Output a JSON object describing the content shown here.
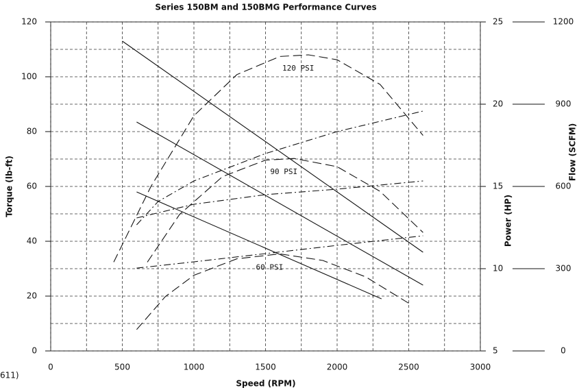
{
  "chart_data": {
    "type": "line",
    "title": "Series 150BM and 150BMG Performance Curves",
    "x_label": "Speed (RPM)",
    "y_label": "Torque (lb-ft)",
    "y2_label": "Power (HP)",
    "y3_label": "Flow (SCFM)",
    "note": "611)",
    "xlim": [
      0,
      3000
    ],
    "xticks": [
      0,
      500,
      1000,
      1500,
      2000,
      2500,
      3000
    ],
    "ylim": [
      0,
      120
    ],
    "yticks": [
      0,
      20,
      40,
      60,
      80,
      100,
      120
    ],
    "y2lim": [
      5,
      25
    ],
    "y2ticks": [
      5,
      10,
      15,
      20,
      25
    ],
    "y3lim": [
      0,
      1200
    ],
    "y3ticks": [
      0,
      300,
      600,
      900,
      1200
    ],
    "grid": true,
    "color": "#111111",
    "series": [
      {
        "style": "solid",
        "axis": "y",
        "x": [
          500,
          2600
        ],
        "values": [
          113,
          36
        ]
      },
      {
        "style": "solid",
        "axis": "y",
        "x": [
          600,
          2600
        ],
        "values": [
          83.5,
          24
        ]
      },
      {
        "style": "solid",
        "axis": "y",
        "x": [
          600,
          2310
        ],
        "values": [
          58,
          19
        ]
      },
      {
        "name": "120 PSI",
        "style": "dashed",
        "axis": "y2",
        "x": [
          440,
          700,
          1000,
          1300,
          1600,
          1800,
          2000,
          2300,
          2600
        ],
        "values": [
          10.4,
          15.0,
          19.3,
          21.8,
          22.9,
          23.0,
          22.7,
          21.2,
          18.1
        ]
      },
      {
        "name": "90 PSI",
        "style": "dashed",
        "axis": "y2",
        "x": [
          675,
          900,
          1200,
          1500,
          1700,
          2000,
          2300,
          2600
        ],
        "values": [
          10.4,
          13.3,
          15.6,
          16.6,
          16.7,
          16.2,
          14.7,
          12.2
        ]
      },
      {
        "name": "60 PSI",
        "style": "dashed",
        "axis": "y2",
        "x": [
          600,
          800,
          1000,
          1300,
          1600,
          1900,
          2200,
          2500
        ],
        "values": [
          6.3,
          8.3,
          9.6,
          10.6,
          10.9,
          10.5,
          9.5,
          7.9
        ]
      },
      {
        "style": "dashdot",
        "axis": "y3",
        "x": [
          600,
          750,
          1000,
          1500,
          2000,
          2600
        ],
        "values": [
          460,
          545,
          620,
          720,
          800,
          875
        ]
      },
      {
        "style": "dashdot",
        "axis": "y3",
        "x": [
          600,
          1000,
          1500,
          2000,
          2600
        ],
        "values": [
          485,
          535,
          570,
          590,
          620
        ]
      },
      {
        "style": "dashdot",
        "axis": "y3",
        "x": [
          600,
          1000,
          1500,
          2000,
          2600
        ],
        "values": [
          302,
          325,
          355,
          385,
          420
        ]
      }
    ]
  }
}
